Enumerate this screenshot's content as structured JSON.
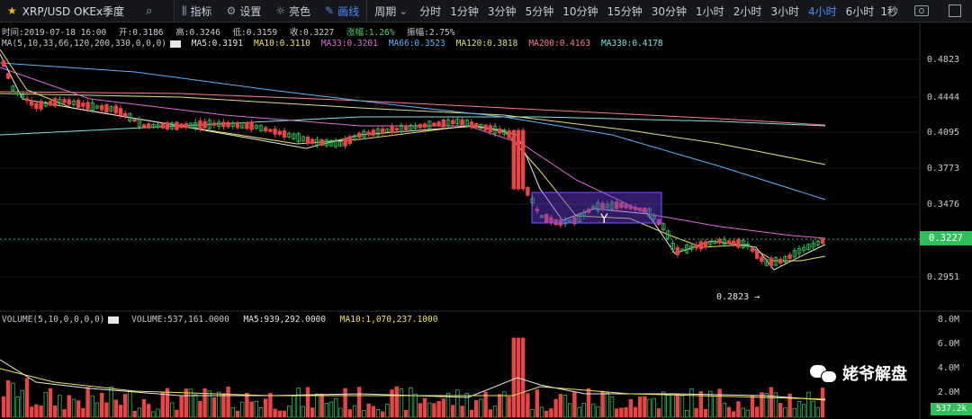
{
  "toolbar": {
    "title": "XRP/USD OKEx季度",
    "buttons": [
      "指标",
      "设置",
      "亮色",
      "画线"
    ],
    "active_button": "画线",
    "period_label": "周期",
    "periods": [
      "分时",
      "1分钟",
      "3分钟",
      "5分钟",
      "10分钟",
      "15分钟",
      "30分钟",
      "1小时",
      "2小时",
      "3小时",
      "4小时",
      "6小时"
    ],
    "active_period": "4小时",
    "refresh": "1秒"
  },
  "ohlc": {
    "time": "时间:2019-07-18 16:00",
    "open": "开:0.3186",
    "high": "高:0.3246",
    "low": "低:0.3159",
    "close": "收:0.3227",
    "change": "涨幅:1.26%",
    "amplitude": "振幅:2.75%"
  },
  "ma_legend": {
    "label": "MA(5,10,33,66,120,200,330,0,0,0)",
    "items": [
      {
        "text": "MA5:0.3191",
        "color": "#e8e8e8"
      },
      {
        "text": "MA10:0.3110",
        "color": "#f2e35c"
      },
      {
        "text": "MA33:0.3201",
        "color": "#e26bd8"
      },
      {
        "text": "MA66:0.3523",
        "color": "#5ab4ff"
      },
      {
        "text": "MA120:0.3818",
        "color": "#d9e27a"
      },
      {
        "text": "MA200:0.4163",
        "color": "#ff7d8a"
      },
      {
        "text": "MA330:0.4178",
        "color": "#7fe0e8"
      }
    ]
  },
  "volume_legend": {
    "label": "VOLUME(5,10,0,0,0,0)",
    "volume": "VOLUME:537,161.0000",
    "ma5": "MA5:939,292.0000",
    "ma10": "MA10:1,070,237.1000"
  },
  "price_axis": [
    "0.4823",
    "0.4444",
    "0.4095",
    "0.3773",
    "0.3476",
    "0.2951"
  ],
  "current_price": "0.3227",
  "volume_axis": [
    "8.0M",
    "6.0M",
    "4.0M",
    "2.0M"
  ],
  "current_volume": "537.2k",
  "low_marker": "0.2823 →",
  "annotation_label": "Y",
  "watermark": "姥爷解盘",
  "colors": {
    "up": "#2fbf5b",
    "down": "#e84545",
    "accent": "#4a8cff",
    "box": "#6a3de0"
  }
}
